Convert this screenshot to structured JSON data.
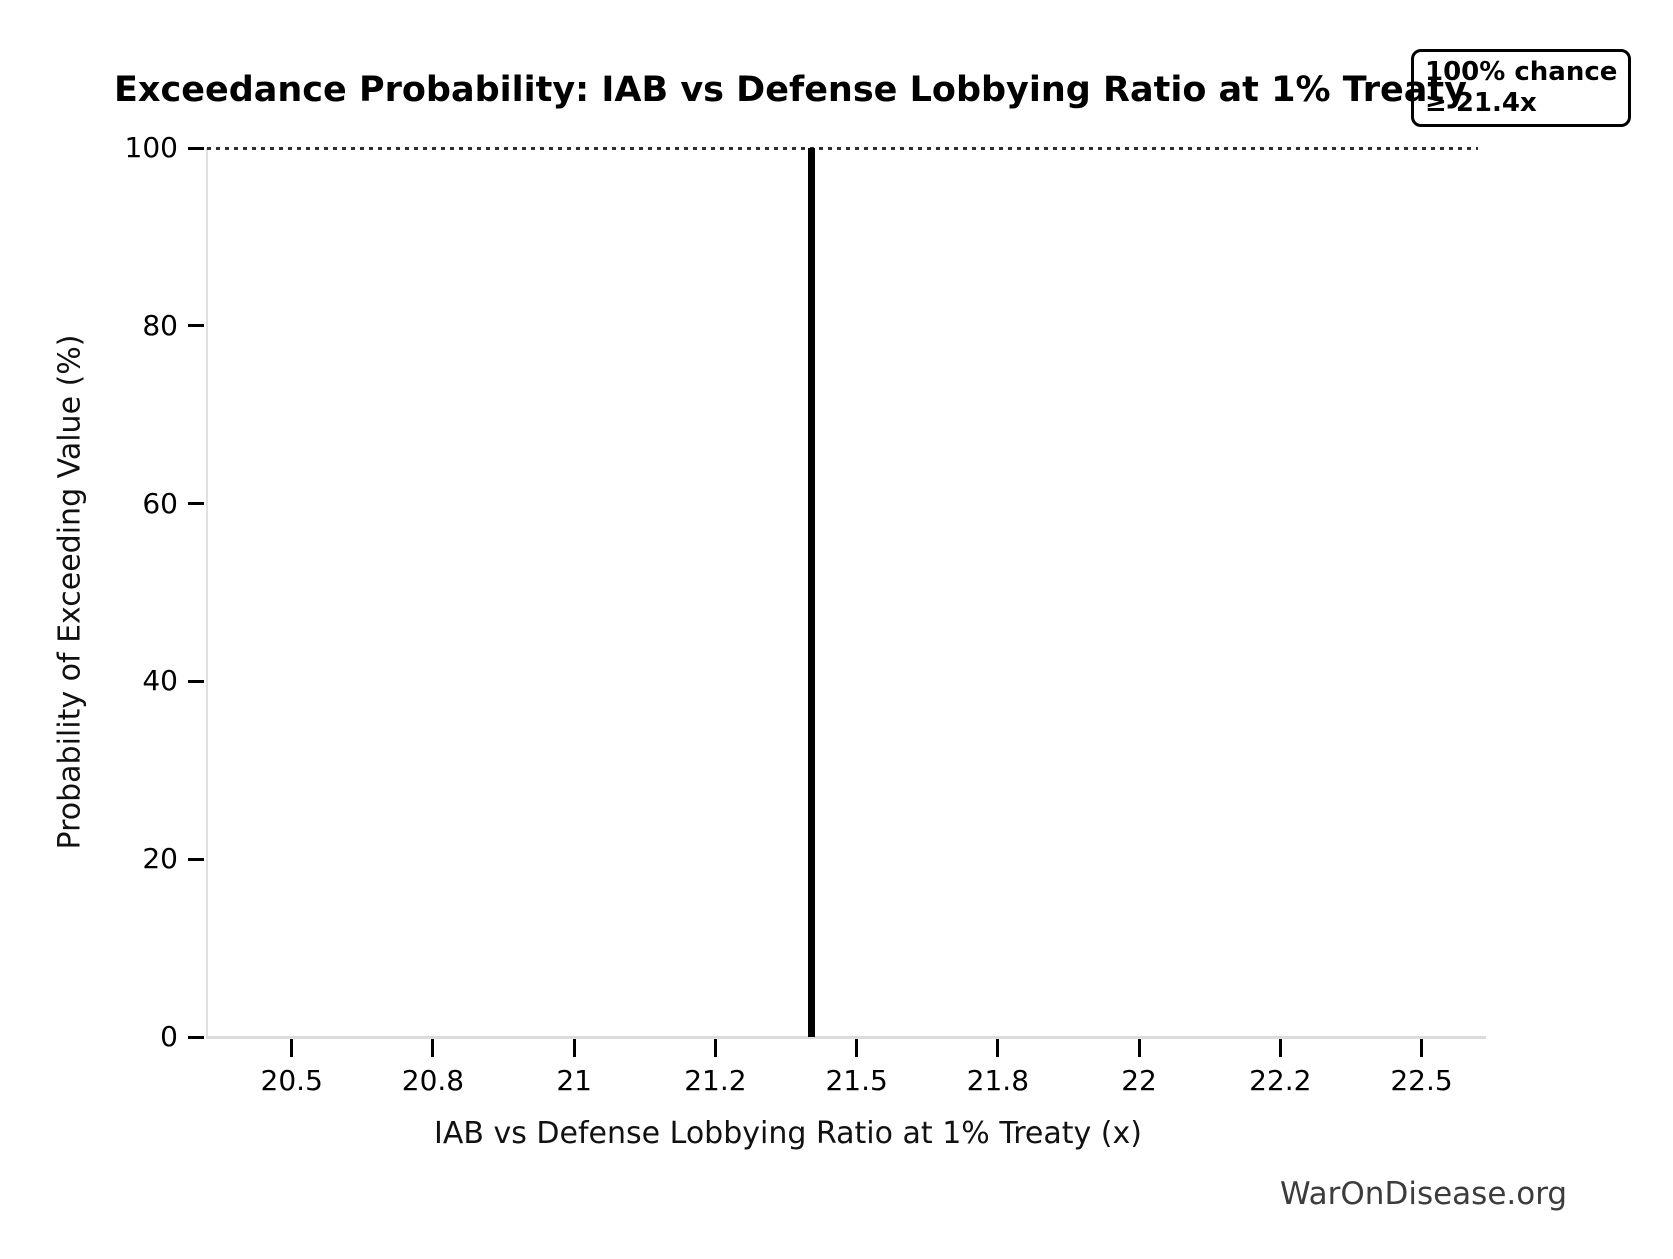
{
  "chart_data": {
    "type": "line",
    "subtype": "exceedance-step",
    "title": "Exceedance Probability: IAB vs Defense Lobbying Ratio at 1% Treaty",
    "xlabel": "IAB vs Defense Lobbying Ratio at 1% Treaty (x)",
    "ylabel": "Probability of Exceeding Value (%)",
    "xlim": [
      20.35,
      22.6
    ],
    "ylim": [
      0,
      100
    ],
    "grid": false,
    "x_ticks": [
      {
        "value": 20.5,
        "label": "20.5"
      },
      {
        "value": 20.75,
        "label": "20.8"
      },
      {
        "value": 21.0,
        "label": "21"
      },
      {
        "value": 21.25,
        "label": "21.2"
      },
      {
        "value": 21.5,
        "label": "21.5"
      },
      {
        "value": 21.75,
        "label": "21.8"
      },
      {
        "value": 22.0,
        "label": "22"
      },
      {
        "value": 22.25,
        "label": "22.2"
      },
      {
        "value": 22.5,
        "label": "22.5"
      }
    ],
    "y_ticks": [
      {
        "value": 0,
        "label": "0"
      },
      {
        "value": 20,
        "label": "20"
      },
      {
        "value": 40,
        "label": "40"
      },
      {
        "value": 60,
        "label": "60"
      },
      {
        "value": 80,
        "label": "80"
      },
      {
        "value": 100,
        "label": "100"
      }
    ],
    "series": [
      {
        "name": "100% chance ≥ 21.4x",
        "description": "Probability of exceeding is 100% for all x up to the threshold, then drops vertically to 0%",
        "threshold_x": 21.42,
        "drop_from_y": 100,
        "drop_to_y": 0,
        "color": "#000000"
      }
    ],
    "reference_line": {
      "y": 100,
      "style": "dotted",
      "color": "#2f2f2f"
    },
    "legend": {
      "position": "top-right",
      "lines": [
        "100% chance",
        "≥ 21.4x"
      ]
    }
  },
  "watermark": "WarOnDisease.org",
  "colors": {
    "background": "#ffffff",
    "axis_line": "#e0e0e0",
    "tick": "#000000",
    "text": "#000000",
    "watermark": "#3c3c3c",
    "data_line": "#000000"
  }
}
